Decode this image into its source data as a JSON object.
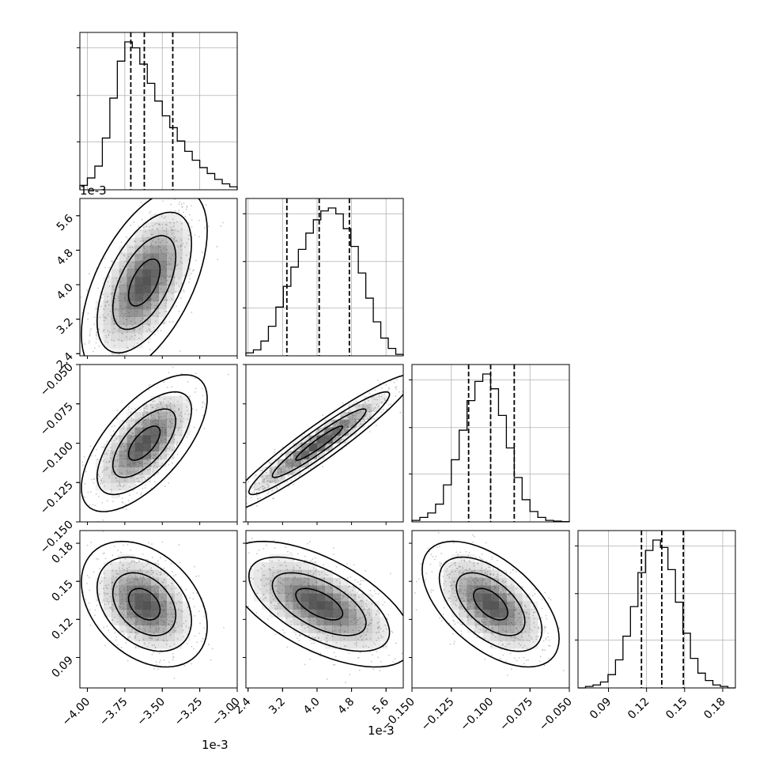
{
  "chart_data": {
    "type": "corner",
    "parameters": [
      {
        "id": "p1",
        "offset_label": "1e-3",
        "range": [
          -4.05,
          -3.0
        ],
        "ticks": [
          -4.0,
          -3.75,
          -3.5,
          -3.25,
          -3.0
        ],
        "tick_labels": [
          "−4.00",
          "−3.75",
          "−3.50",
          "−3.25",
          "−3.00"
        ],
        "quantiles": [
          -3.71,
          -3.62,
          -3.43
        ],
        "hist": [
          0.03,
          0.08,
          0.16,
          0.35,
          0.62,
          0.87,
          1.0,
          0.96,
          0.85,
          0.72,
          0.6,
          0.5,
          0.42,
          0.33,
          0.26,
          0.2,
          0.15,
          0.11,
          0.07,
          0.04,
          0.02
        ]
      },
      {
        "id": "p2",
        "offset_label": "1e-3",
        "range": [
          2.35,
          6.0
        ],
        "ticks": [
          2.4,
          3.2,
          4.0,
          4.8,
          5.6
        ],
        "tick_labels": [
          "2.4",
          "3.2",
          "4.0",
          "4.8",
          "5.6"
        ],
        "quantiles": [
          3.3,
          4.05,
          4.75
        ],
        "hist": [
          0.02,
          0.04,
          0.1,
          0.2,
          0.33,
          0.47,
          0.6,
          0.72,
          0.83,
          0.92,
          0.98,
          1.0,
          0.96,
          0.86,
          0.74,
          0.56,
          0.39,
          0.23,
          0.12,
          0.05,
          0.01
        ]
      },
      {
        "id": "p3",
        "offset_label": "",
        "range": [
          -0.15,
          -0.05
        ],
        "ticks": [
          -0.15,
          -0.125,
          -0.1,
          -0.075,
          -0.05
        ],
        "tick_labels": [
          "−0.150",
          "−0.125",
          "−0.100",
          "−0.075",
          "−0.050"
        ],
        "quantiles": [
          -0.114,
          -0.1,
          -0.085
        ],
        "hist": [
          0.01,
          0.03,
          0.06,
          0.12,
          0.25,
          0.42,
          0.62,
          0.82,
          0.95,
          1.0,
          0.9,
          0.72,
          0.5,
          0.3,
          0.15,
          0.07,
          0.03,
          0.01,
          0.005,
          0.002
        ]
      },
      {
        "id": "p4",
        "offset_label": "",
        "range": [
          0.066,
          0.19
        ],
        "ticks": [
          0.09,
          0.12,
          0.15,
          0.18
        ],
        "tick_labels": [
          "0.09",
          "0.12",
          "0.15",
          "0.18"
        ],
        "quantiles": [
          0.116,
          0.132,
          0.149
        ],
        "hist": [
          0.0,
          0.01,
          0.02,
          0.04,
          0.09,
          0.19,
          0.35,
          0.55,
          0.78,
          0.93,
          1.0,
          0.95,
          0.8,
          0.58,
          0.37,
          0.2,
          0.1,
          0.05,
          0.02,
          0.01,
          0.0
        ]
      }
    ],
    "correlations": {
      "1-0": 0.55,
      "2-0": 0.65,
      "2-1": 0.95,
      "3-0": -0.35,
      "3-1": -0.6,
      "3-2": -0.55
    },
    "contour_levels_sigma": [
      0.5,
      1.0,
      1.5,
      2.0
    ],
    "grid": true,
    "line_color": "#000000",
    "scatter_color": "#9a9a9a",
    "fill_color": "#4a4a4a"
  }
}
